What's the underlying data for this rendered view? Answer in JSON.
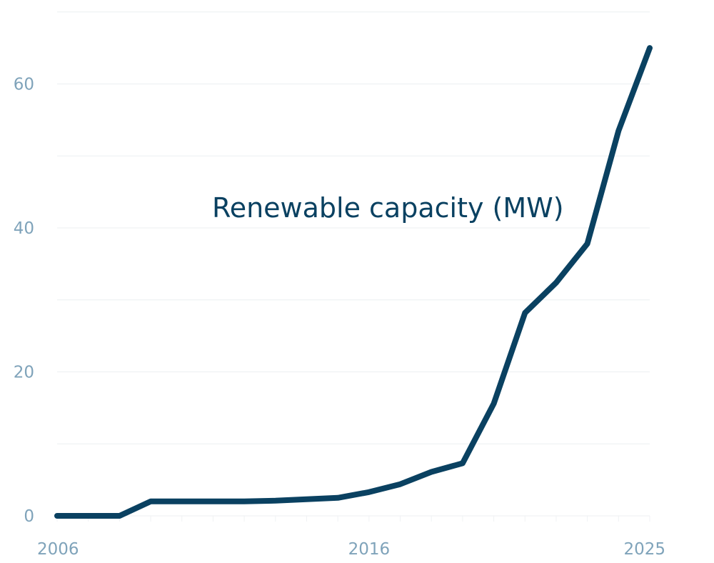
{
  "chart_data": {
    "type": "line",
    "title": "",
    "xlabel": "",
    "ylabel": "",
    "xlim": [
      2006,
      2025
    ],
    "ylim": [
      0,
      65
    ],
    "x_ticks": [
      2006,
      2016,
      2025
    ],
    "x_tick_labels": [
      "2006",
      "2016",
      "2025"
    ],
    "y_ticks": [
      0,
      20,
      40,
      60
    ],
    "y_tick_labels": [
      "0",
      "20",
      "40",
      "60"
    ],
    "grid": true,
    "legend": "none",
    "series": [
      {
        "name": "Renewable capacity (MW)",
        "color": "#0a4161",
        "x": [
          2006,
          2007,
          2008,
          2009,
          2010,
          2011,
          2012,
          2013,
          2014,
          2015,
          2016,
          2017,
          2018,
          2019,
          2020,
          2021,
          2022,
          2023,
          2024,
          2025
        ],
        "y": [
          0,
          0,
          0,
          2,
          2,
          2,
          2,
          2.1,
          2.3,
          2.5,
          3.3,
          4.4,
          6.1,
          7.3,
          15.6,
          28.2,
          32.4,
          37.8,
          53.5,
          65.0
        ]
      }
    ]
  }
}
